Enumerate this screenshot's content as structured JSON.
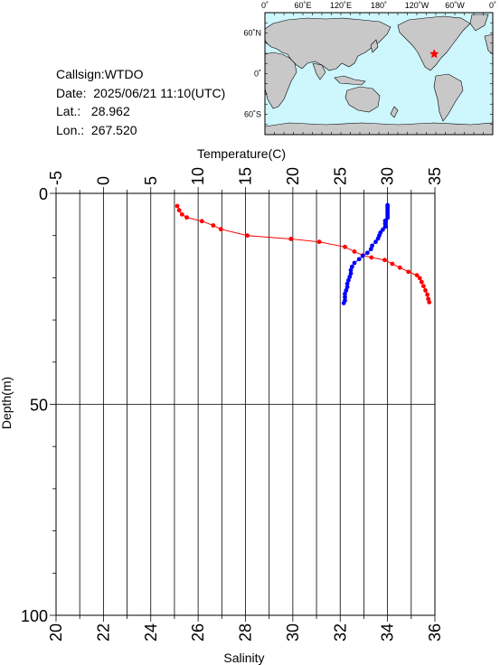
{
  "station": {
    "callsign_label": "Callsign:",
    "callsign": "WTDO",
    "date_label": "Date:",
    "date": "2025/06/21 11:10(UTC)",
    "lat_label": "Lat.:",
    "lat": "28.962",
    "lon_label": "Lon.:",
    "lon": "267.520"
  },
  "map": {
    "top_ticks": [
      "0˚",
      "60˚E",
      "120˚E",
      "180˚",
      "120˚W",
      "60˚W",
      "0˚"
    ],
    "lat_ticks": [
      "60˚N",
      "0˚",
      "60˚S"
    ],
    "ocean_color": "#cdf6fd",
    "land_color": "#c8c8c8",
    "marker": "star",
    "marker_color": "#ff0000"
  },
  "chart_data": {
    "type": "scatter",
    "top_axis_title": "Temperature(C)",
    "bottom_axis_title": "Salinity",
    "ylabel": "Depth(m)",
    "temperature_ticks": [
      "-5",
      "0",
      "5",
      "10",
      "15",
      "20",
      "25",
      "30",
      "35"
    ],
    "salinity_ticks": [
      "20",
      "22",
      "24",
      "26",
      "28",
      "30",
      "32",
      "34",
      "36"
    ],
    "depth_ticks": [
      "0",
      "50",
      "100"
    ],
    "temperature_lim": [
      -5,
      35
    ],
    "salinity_lim": [
      20,
      36
    ],
    "depth_lim": [
      0,
      100
    ],
    "grid": true,
    "series": [
      {
        "color": "#ff0000",
        "axis": "temperature",
        "points": [
          [
            7.8,
            3.0
          ],
          [
            8.0,
            4.0
          ],
          [
            8.3,
            5.0
          ],
          [
            8.8,
            5.7
          ],
          [
            10.4,
            6.6
          ],
          [
            11.6,
            7.6
          ],
          [
            12.4,
            8.5
          ],
          [
            15.2,
            10.0
          ],
          [
            19.8,
            10.8
          ],
          [
            22.8,
            11.5
          ],
          [
            25.5,
            12.7
          ],
          [
            26.5,
            13.8
          ],
          [
            27.4,
            14.7
          ],
          [
            28.3,
            15.2
          ],
          [
            29.7,
            15.8
          ],
          [
            30.5,
            16.7
          ],
          [
            31.3,
            17.6
          ],
          [
            32.2,
            18.6
          ],
          [
            33.1,
            19.4
          ],
          [
            33.4,
            20.1
          ],
          [
            33.6,
            21.0
          ],
          [
            33.8,
            22.0
          ],
          [
            34.0,
            23.0
          ],
          [
            34.2,
            24.0
          ],
          [
            34.3,
            25.0
          ],
          [
            34.4,
            25.8
          ]
        ]
      },
      {
        "color": "#0000ff",
        "axis": "salinity",
        "points": [
          [
            34.0,
            2.8
          ],
          [
            34.0,
            3.3
          ],
          [
            34.0,
            3.8
          ],
          [
            34.0,
            4.3
          ],
          [
            34.0,
            4.8
          ],
          [
            34.0,
            5.3
          ],
          [
            34.0,
            5.8
          ],
          [
            33.9,
            6.5
          ],
          [
            33.9,
            7.2
          ],
          [
            33.9,
            7.9
          ],
          [
            33.8,
            8.6
          ],
          [
            33.7,
            9.3
          ],
          [
            33.65,
            10.0
          ],
          [
            33.6,
            10.7
          ],
          [
            33.5,
            11.5
          ],
          [
            33.35,
            12.4
          ],
          [
            33.3,
            13.2
          ],
          [
            33.15,
            14.1
          ],
          [
            32.95,
            14.8
          ],
          [
            32.8,
            15.6
          ],
          [
            32.6,
            16.5
          ],
          [
            32.5,
            17.4
          ],
          [
            32.45,
            18.2
          ],
          [
            32.45,
            19.0
          ],
          [
            32.4,
            19.8
          ],
          [
            32.35,
            20.6
          ],
          [
            32.3,
            21.4
          ],
          [
            32.3,
            22.2
          ],
          [
            32.25,
            23.0
          ],
          [
            32.2,
            23.8
          ],
          [
            32.2,
            24.6
          ],
          [
            32.2,
            25.4
          ],
          [
            32.15,
            26.0
          ]
        ]
      }
    ]
  }
}
